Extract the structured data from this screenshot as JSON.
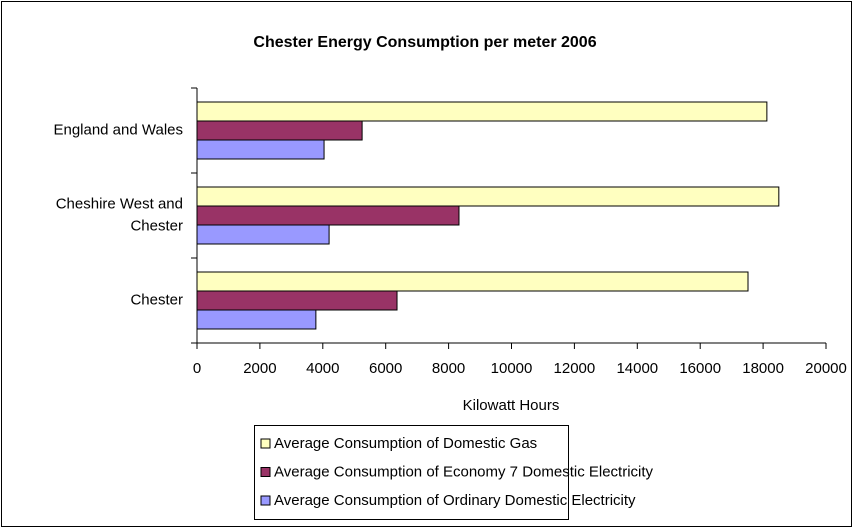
{
  "chart_data": {
    "type": "hbar",
    "title": "Chester Energy Consumption per meter 2006",
    "xlabel": "Kilowatt Hours",
    "categories": [
      "England and Wales",
      "Cheshire West and Chester",
      "Chester"
    ],
    "series": [
      {
        "name": "Average Consumption of Domestic Gas",
        "color": "#ffffc0",
        "values": [
          18120,
          18500,
          17520
        ]
      },
      {
        "name": "Average Consumption of Economy 7 Domestic Electricity",
        "color": "#993366",
        "values": [
          5250,
          8330,
          6360
        ]
      },
      {
        "name": "Average Consumption of Ordinary Domestic Electricity",
        "color": "#9999ff",
        "values": [
          4040,
          4200,
          3780
        ]
      }
    ],
    "xlim": [
      0,
      20000
    ],
    "xticks": [
      0,
      2000,
      4000,
      6000,
      8000,
      10000,
      12000,
      14000,
      16000,
      18000,
      20000
    ],
    "grid": false,
    "legend": "bottom"
  }
}
